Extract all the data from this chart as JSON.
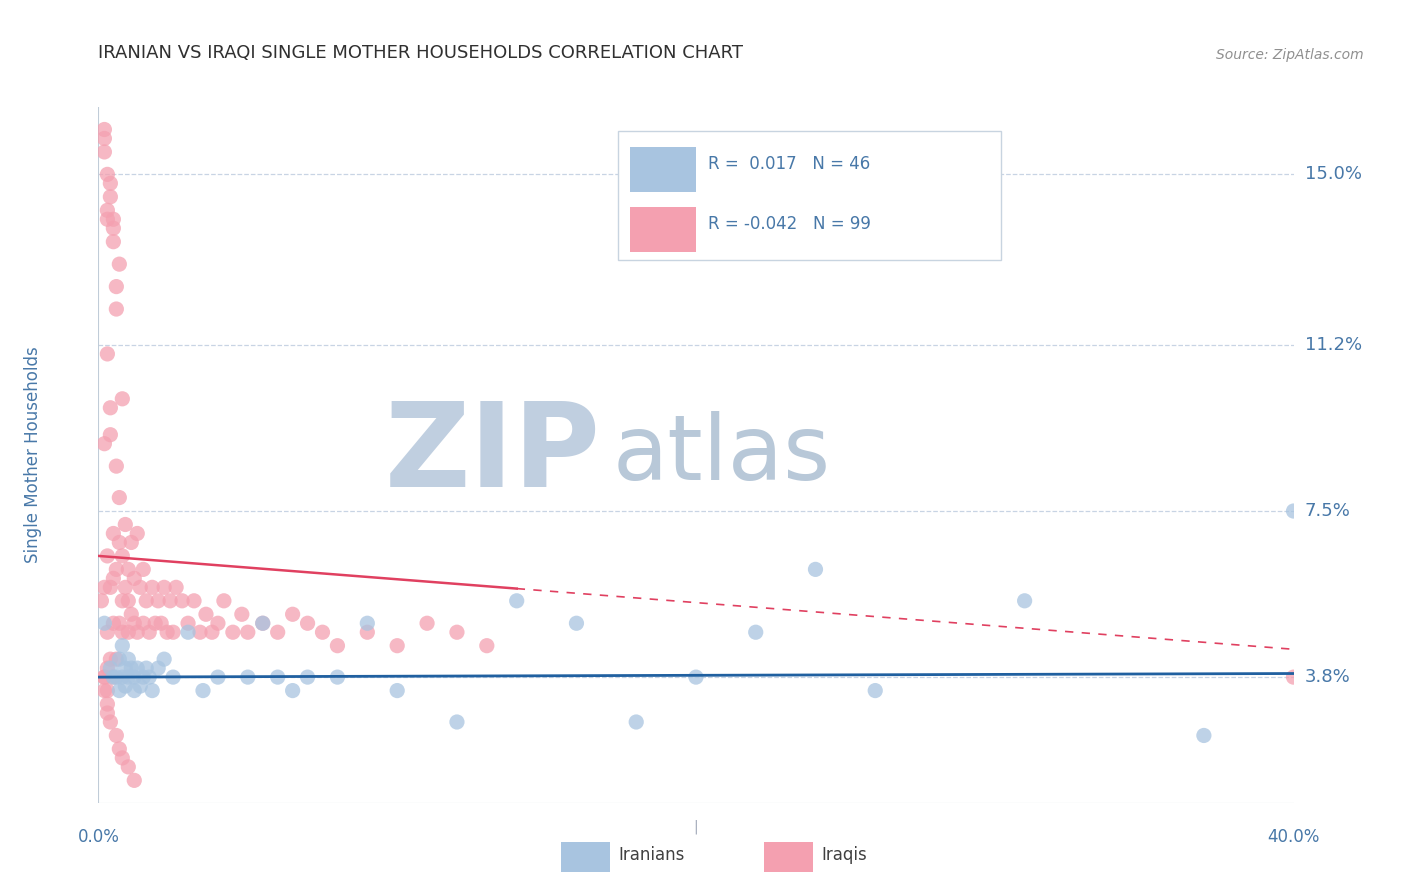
{
  "title": "IRANIAN VS IRAQI SINGLE MOTHER HOUSEHOLDS CORRELATION CHART",
  "source": "Source: ZipAtlas.com",
  "ylabel": "Single Mother Households",
  "xlim": [
    0.0,
    0.4
  ],
  "ylim": [
    0.01,
    0.165
  ],
  "yticks": [
    0.038,
    0.075,
    0.112,
    0.15
  ],
  "ytick_labels": [
    "3.8%",
    "7.5%",
    "11.2%",
    "15.0%"
  ],
  "iranian_color": "#a8c4e0",
  "iraqi_color": "#f4a0b0",
  "iranian_line_color": "#2060a0",
  "iraqi_line_color": "#e04060",
  "R_iranian": 0.017,
  "N_iranian": 46,
  "R_iraqi": -0.042,
  "N_iraqi": 99,
  "watermark_zip": "ZIP",
  "watermark_atlas": "atlas",
  "watermark_color_zip": "#c0cfe0",
  "watermark_color_atlas": "#b8c8d8",
  "legend_label_1": "Iranians",
  "legend_label_2": "Iraqis",
  "background_color": "#ffffff",
  "grid_color": "#c8d4e4",
  "title_color": "#303030",
  "label_color": "#4878a8",
  "iranians_x": [
    0.002,
    0.004,
    0.005,
    0.006,
    0.007,
    0.007,
    0.008,
    0.008,
    0.009,
    0.009,
    0.01,
    0.01,
    0.011,
    0.012,
    0.012,
    0.013,
    0.014,
    0.015,
    0.016,
    0.017,
    0.018,
    0.02,
    0.022,
    0.025,
    0.03,
    0.035,
    0.04,
    0.05,
    0.055,
    0.06,
    0.065,
    0.07,
    0.08,
    0.09,
    0.1,
    0.12,
    0.14,
    0.16,
    0.18,
    0.2,
    0.22,
    0.24,
    0.26,
    0.31,
    0.37,
    0.4
  ],
  "iranians_y": [
    0.05,
    0.04,
    0.038,
    0.038,
    0.035,
    0.042,
    0.038,
    0.045,
    0.036,
    0.04,
    0.038,
    0.042,
    0.04,
    0.035,
    0.038,
    0.04,
    0.036,
    0.038,
    0.04,
    0.038,
    0.035,
    0.04,
    0.042,
    0.038,
    0.048,
    0.035,
    0.038,
    0.038,
    0.05,
    0.038,
    0.035,
    0.038,
    0.038,
    0.05,
    0.035,
    0.028,
    0.055,
    0.05,
    0.028,
    0.038,
    0.048,
    0.062,
    0.035,
    0.055,
    0.025,
    0.075
  ],
  "iraqis_x": [
    0.001,
    0.002,
    0.002,
    0.003,
    0.003,
    0.004,
    0.004,
    0.005,
    0.005,
    0.005,
    0.006,
    0.006,
    0.006,
    0.007,
    0.007,
    0.007,
    0.008,
    0.008,
    0.008,
    0.009,
    0.009,
    0.01,
    0.01,
    0.01,
    0.011,
    0.011,
    0.012,
    0.012,
    0.013,
    0.013,
    0.014,
    0.015,
    0.015,
    0.016,
    0.017,
    0.018,
    0.019,
    0.02,
    0.021,
    0.022,
    0.023,
    0.024,
    0.025,
    0.026,
    0.028,
    0.03,
    0.032,
    0.034,
    0.036,
    0.038,
    0.04,
    0.042,
    0.045,
    0.048,
    0.05,
    0.055,
    0.06,
    0.065,
    0.07,
    0.075,
    0.08,
    0.09,
    0.1,
    0.11,
    0.12,
    0.13,
    0.003,
    0.004,
    0.005,
    0.006,
    0.007,
    0.008,
    0.003,
    0.004,
    0.005,
    0.006,
    0.002,
    0.003,
    0.004,
    0.005,
    0.002,
    0.003,
    0.002,
    0.002,
    0.003,
    0.004,
    0.005,
    0.003,
    0.002,
    0.003,
    0.002,
    0.003,
    0.004,
    0.006,
    0.007,
    0.008,
    0.01,
    0.012,
    0.4
  ],
  "iraqis_y": [
    0.055,
    0.058,
    0.09,
    0.048,
    0.065,
    0.058,
    0.092,
    0.05,
    0.07,
    0.06,
    0.042,
    0.062,
    0.085,
    0.05,
    0.068,
    0.078,
    0.055,
    0.065,
    0.048,
    0.058,
    0.072,
    0.048,
    0.062,
    0.055,
    0.052,
    0.068,
    0.05,
    0.06,
    0.048,
    0.07,
    0.058,
    0.05,
    0.062,
    0.055,
    0.048,
    0.058,
    0.05,
    0.055,
    0.05,
    0.058,
    0.048,
    0.055,
    0.048,
    0.058,
    0.055,
    0.05,
    0.055,
    0.048,
    0.052,
    0.048,
    0.05,
    0.055,
    0.048,
    0.052,
    0.048,
    0.05,
    0.048,
    0.052,
    0.05,
    0.048,
    0.045,
    0.048,
    0.045,
    0.05,
    0.048,
    0.045,
    0.11,
    0.098,
    0.14,
    0.12,
    0.13,
    0.1,
    0.15,
    0.145,
    0.135,
    0.125,
    0.155,
    0.14,
    0.148,
    0.138,
    0.16,
    0.142,
    0.158,
    0.038,
    0.04,
    0.042,
    0.038,
    0.035,
    0.038,
    0.032,
    0.035,
    0.03,
    0.028,
    0.025,
    0.022,
    0.02,
    0.018,
    0.015,
    0.038
  ]
}
